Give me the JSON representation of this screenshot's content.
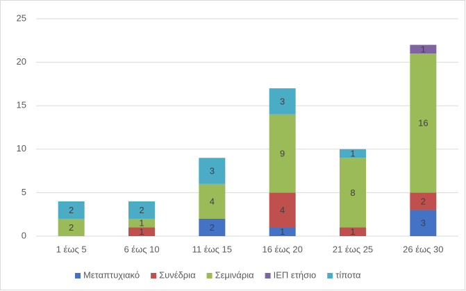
{
  "chart_data": {
    "type": "stacked_bar",
    "categories": [
      "1 έως 5",
      "6 έως 10",
      "11 έως 15",
      "16 έως 20",
      "21 έως 25",
      "26 έως 30"
    ],
    "series": [
      {
        "name": "Μεταπτυχιακό",
        "color": "#4472c4",
        "values": [
          null,
          null,
          2,
          1,
          null,
          3
        ]
      },
      {
        "name": "Συνέδρια",
        "color": "#c0504d",
        "values": [
          null,
          1,
          null,
          4,
          1,
          2
        ]
      },
      {
        "name": "Σεμινάρια",
        "color": "#9bbb59",
        "values": [
          2,
          1,
          4,
          9,
          8,
          16
        ]
      },
      {
        "name": "ΙΕΠ ετήσιο",
        "color": "#8064a2",
        "values": [
          null,
          null,
          null,
          null,
          null,
          1
        ]
      },
      {
        "name": "τίποτα",
        "color": "#4bacc6",
        "values": [
          2,
          2,
          3,
          3,
          1,
          null
        ]
      }
    ],
    "ylim": [
      0,
      25
    ],
    "yticks": [
      0,
      5,
      10,
      15,
      20,
      25
    ],
    "grid": true,
    "legend": "bottom"
  }
}
